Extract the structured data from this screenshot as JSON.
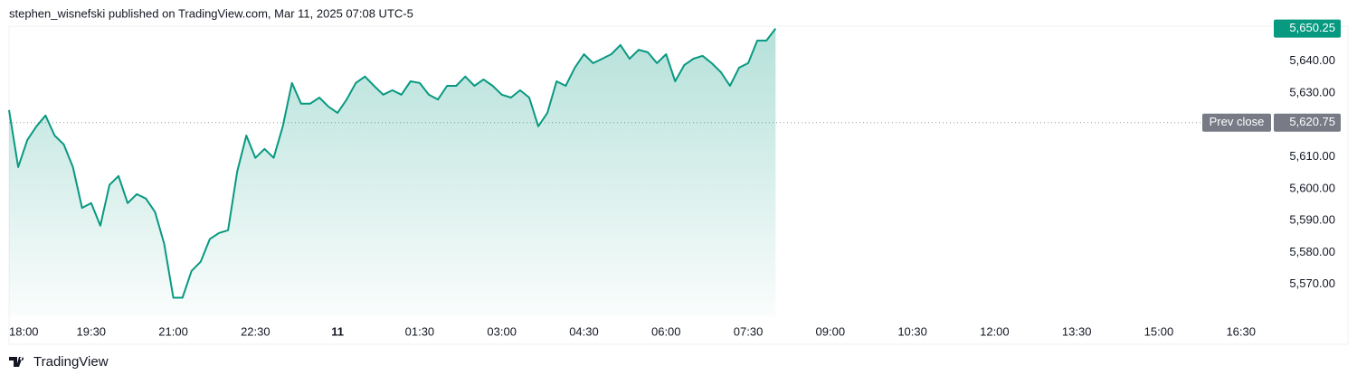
{
  "chart_data": {
    "type": "line",
    "title": "stephen_wisnefski published on TradingView.com, Mar 11, 2025 07:08 UTC-5",
    "source": "TradingView",
    "x": [
      "18:00",
      "18:10",
      "18:20",
      "18:30",
      "18:40",
      "18:50",
      "19:00",
      "19:10",
      "19:20",
      "19:30",
      "19:40",
      "19:50",
      "20:00",
      "20:10",
      "20:20",
      "20:30",
      "20:40",
      "20:50",
      "21:00",
      "21:10",
      "21:20",
      "21:30",
      "21:40",
      "21:50",
      "22:00",
      "22:10",
      "22:20",
      "22:30",
      "22:40",
      "22:50",
      "23:00",
      "23:10",
      "23:20",
      "23:30",
      "23:40",
      "23:50",
      "00:00",
      "00:10",
      "00:20",
      "00:30",
      "00:40",
      "00:50",
      "01:00",
      "01:10",
      "01:20",
      "01:30",
      "01:40",
      "01:50",
      "02:00",
      "02:10",
      "02:20",
      "02:30",
      "02:40",
      "02:50",
      "03:00",
      "03:10",
      "03:20",
      "03:30",
      "03:40",
      "03:50",
      "04:00",
      "04:10",
      "04:20",
      "04:30",
      "04:40",
      "04:50",
      "05:00",
      "05:10",
      "05:20",
      "05:30",
      "05:40",
      "05:50",
      "06:00",
      "06:10",
      "06:20",
      "06:30",
      "06:40",
      "06:50",
      "07:00",
      "07:10",
      "07:20",
      "07:30",
      "07:40",
      "07:50",
      "08:00"
    ],
    "series": [
      {
        "color": "#089981",
        "last_value_label": "5,650.25",
        "values": [
          5624.7,
          5606.8,
          5615.3,
          5619.6,
          5623.0,
          5616.7,
          5613.9,
          5606.8,
          5594.0,
          5595.5,
          5588.4,
          5601.2,
          5604.0,
          5595.5,
          5598.3,
          5596.9,
          5592.7,
          5582.7,
          5565.8,
          5565.8,
          5574.2,
          5577.1,
          5584.2,
          5586.1,
          5587.0,
          5605.4,
          5616.7,
          5609.7,
          5612.5,
          5609.7,
          5619.6,
          5633.2,
          5626.7,
          5626.7,
          5628.6,
          5625.8,
          5623.8,
          5628.0,
          5633.2,
          5635.2,
          5632.3,
          5629.5,
          5630.9,
          5629.5,
          5633.7,
          5633.2,
          5629.5,
          5628.0,
          5632.3,
          5632.3,
          5635.2,
          5632.3,
          5634.3,
          5632.3,
          5629.5,
          5628.6,
          5630.9,
          5628.6,
          5619.6,
          5623.8,
          5633.7,
          5632.3,
          5638.0,
          5642.2,
          5639.4,
          5640.8,
          5642.2,
          5645.1,
          5640.8,
          5643.6,
          5642.8,
          5639.4,
          5642.2,
          5633.7,
          5638.8,
          5640.8,
          5641.7,
          5639.4,
          5636.6,
          5632.3,
          5638.0,
          5639.4,
          5646.5,
          5646.5,
          5650.25
        ]
      }
    ],
    "prev_close": {
      "label": "Prev close",
      "value": 5620.75,
      "value_label": "5,620.75"
    },
    "xlim": [
      "18:00",
      "17:00"
    ],
    "xticks": [
      {
        "value": "18:00",
        "label": "18:00"
      },
      {
        "value": "19:30",
        "label": "19:30"
      },
      {
        "value": "21:00",
        "label": "21:00"
      },
      {
        "value": "22:30",
        "label": "22:30"
      },
      {
        "value": "00:00",
        "label": "11"
      },
      {
        "value": "01:30",
        "label": "01:30"
      },
      {
        "value": "03:00",
        "label": "03:00"
      },
      {
        "value": "04:30",
        "label": "04:30"
      },
      {
        "value": "06:00",
        "label": "06:00"
      },
      {
        "value": "07:30",
        "label": "07:30"
      },
      {
        "value": "09:00",
        "label": "09:00"
      },
      {
        "value": "10:30",
        "label": "10:30"
      },
      {
        "value": "12:00",
        "label": "12:00"
      },
      {
        "value": "13:30",
        "label": "13:30"
      },
      {
        "value": "15:00",
        "label": "15:00"
      },
      {
        "value": "16:30",
        "label": "16:30"
      }
    ],
    "ylim": [
      5560,
      5651
    ],
    "yticks": [
      {
        "value": 5570,
        "label": "5,570.00"
      },
      {
        "value": 5580,
        "label": "5,580.00"
      },
      {
        "value": 5590,
        "label": "5,590.00"
      },
      {
        "value": 5600,
        "label": "5,600.00"
      },
      {
        "value": 5610,
        "label": "5,610.00"
      },
      {
        "value": 5620,
        "label": "5,620.00"
      },
      {
        "value": 5630,
        "label": "5,630.00"
      },
      {
        "value": 5640,
        "label": "5,640.00"
      }
    ],
    "grid": false
  }
}
